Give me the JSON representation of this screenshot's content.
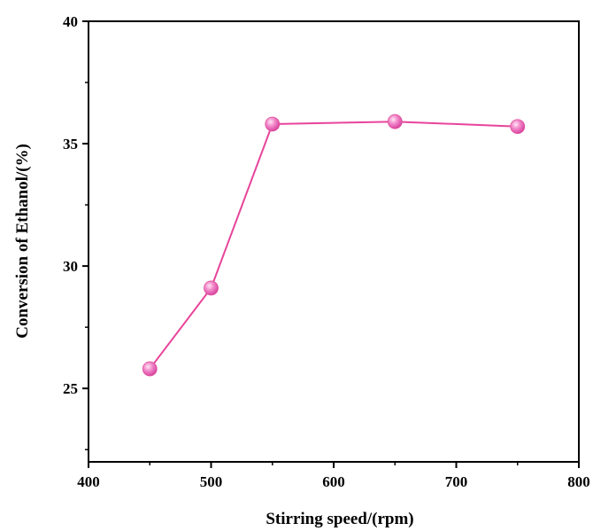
{
  "chart_data": {
    "type": "line",
    "title": "",
    "xlabel": "Stirring speed/(rpm)",
    "ylabel": "Conversion of Ethanol/(%)",
    "xlim": [
      400,
      800
    ],
    "ylim": [
      22,
      40
    ],
    "x_ticks": [
      "400",
      "500",
      "600",
      "700",
      "800"
    ],
    "y_ticks": [
      "25",
      "30",
      "35",
      "40"
    ],
    "grid": false,
    "legend": "none",
    "series": [
      {
        "x": [
          450,
          500,
          550,
          650,
          750
        ],
        "y": [
          25.8,
          29.1,
          35.8,
          35.9,
          35.7
        ],
        "color": "#e8449a",
        "marker_color": "#f07cc4"
      }
    ]
  }
}
